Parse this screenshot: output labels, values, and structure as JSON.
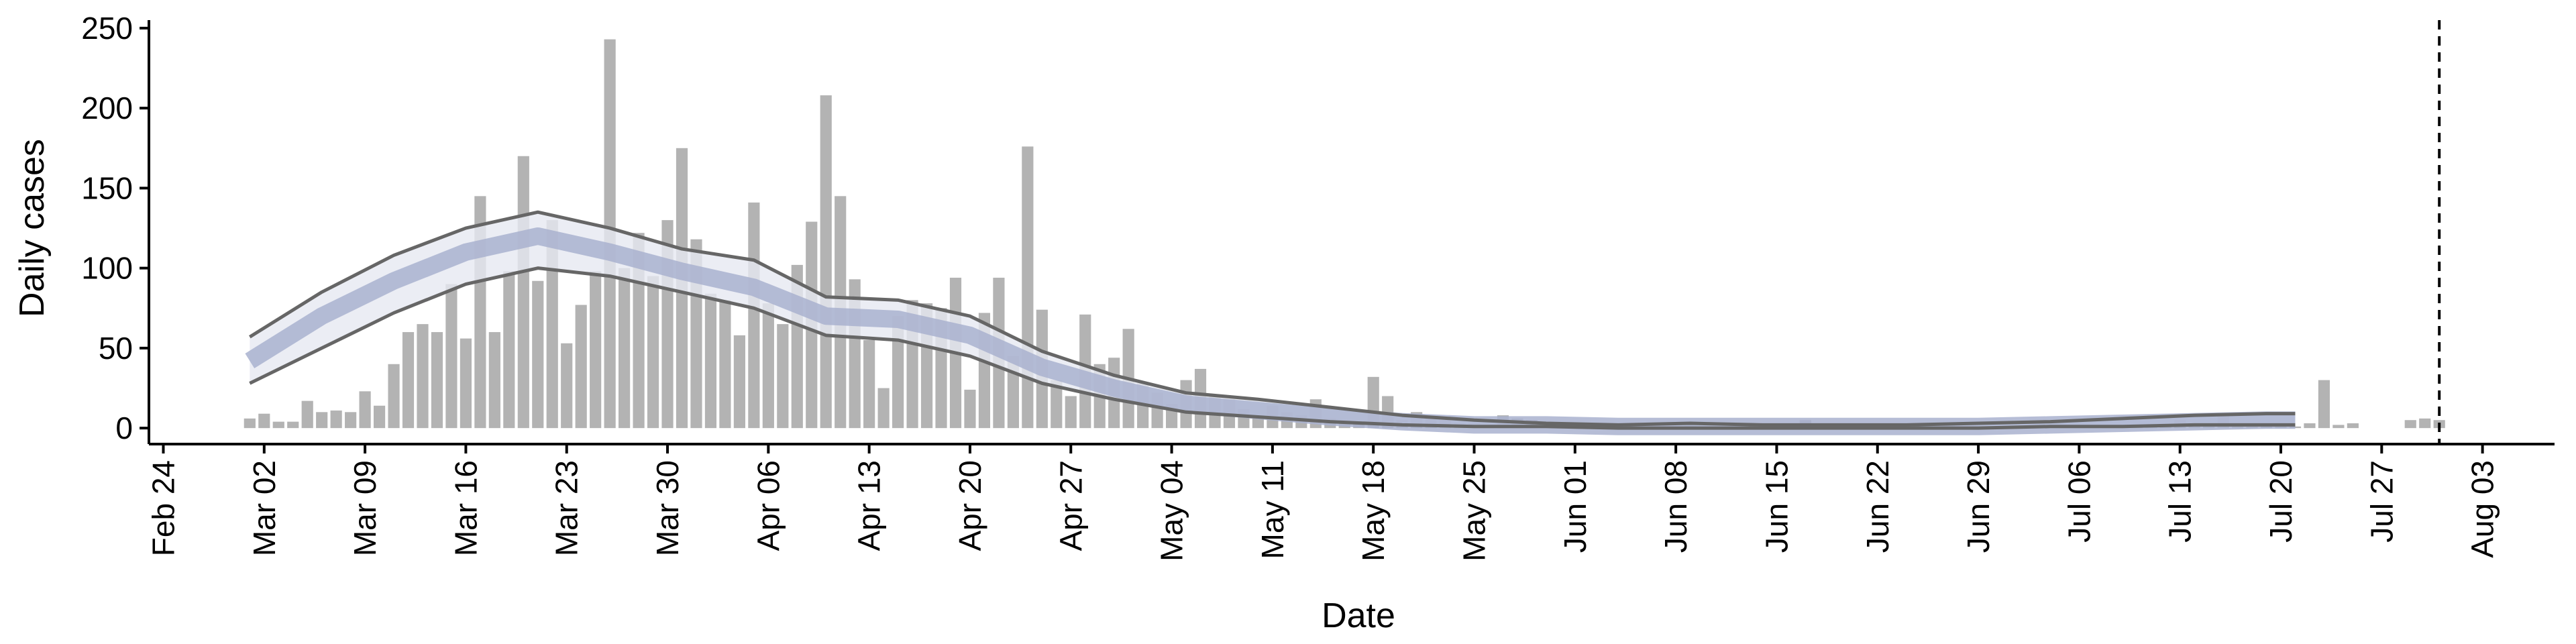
{
  "chart_data": {
    "type": "bar",
    "xlabel": "Date",
    "ylabel": "Daily cases",
    "color": "#b3b3b3",
    "x": [
      "Mar 01",
      "Mar 02",
      "Mar 03",
      "Mar 04",
      "Mar 05",
      "Mar 06",
      "Mar 07",
      "Mar 08",
      "Mar 09",
      "Mar 10",
      "Mar 11",
      "Mar 12",
      "Mar 13",
      "Mar 14",
      "Mar 15",
      "Mar 16",
      "Mar 17",
      "Mar 18",
      "Mar 19",
      "Mar 20",
      "Mar 21",
      "Mar 22",
      "Mar 23",
      "Mar 24",
      "Mar 25",
      "Mar 26",
      "Mar 27",
      "Mar 28",
      "Mar 29",
      "Mar 30",
      "Mar 31",
      "Apr 01",
      "Apr 02",
      "Apr 03",
      "Apr 04",
      "Apr 05",
      "Apr 06",
      "Apr 07",
      "Apr 08",
      "Apr 09",
      "Apr 10",
      "Apr 11",
      "Apr 12",
      "Apr 13",
      "Apr 14",
      "Apr 15",
      "Apr 16",
      "Apr 17",
      "Apr 18",
      "Apr 19",
      "Apr 20",
      "Apr 21",
      "Apr 22",
      "Apr 23",
      "Apr 24",
      "Apr 25",
      "Apr 26",
      "Apr 27",
      "Apr 28",
      "Apr 29",
      "Apr 30",
      "May 01",
      "May 02",
      "May 03",
      "May 04",
      "May 05",
      "May 06",
      "May 07",
      "May 08",
      "May 09",
      "May 10",
      "May 11",
      "May 12",
      "May 13",
      "May 14",
      "May 15",
      "May 16",
      "May 17",
      "May 18",
      "May 19",
      "May 20",
      "May 21",
      "May 22",
      "May 23",
      "May 24",
      "May 25",
      "May 26",
      "May 27",
      "May 28",
      "May 29",
      "May 30",
      "May 31",
      "Jun 01",
      "Jun 02",
      "Jun 03",
      "Jun 04",
      "Jun 05",
      "Jun 06",
      "Jun 07",
      "Jun 08",
      "Jun 09",
      "Jun 10",
      "Jun 11",
      "Jun 12",
      "Jun 13",
      "Jun 14",
      "Jun 15",
      "Jun 16",
      "Jun 17",
      "Jun 18",
      "Jun 19",
      "Jun 20",
      "Jun 21",
      "Jun 22",
      "Jun 23",
      "Jun 24",
      "Jun 25",
      "Jun 26",
      "Jun 27",
      "Jun 28",
      "Jun 29",
      "Jun 30",
      "Jul 01",
      "Jul 02",
      "Jul 03",
      "Jul 04",
      "Jul 05",
      "Jul 06",
      "Jul 07",
      "Jul 08",
      "Jul 09",
      "Jul 10",
      "Jul 11",
      "Jul 12",
      "Jul 13",
      "Jul 14",
      "Jul 15",
      "Jul 16",
      "Jul 17",
      "Jul 18",
      "Jul 19",
      "Jul 20",
      "Jul 21",
      "Jul 22",
      "Jul 23",
      "Jul 24",
      "Jul 25",
      "Jul 26",
      "Jul 27",
      "Jul 28",
      "Jul 29",
      "Jul 30",
      "Jul 31"
    ],
    "values": [
      6,
      9,
      4,
      4,
      17,
      10,
      11,
      10,
      23,
      14,
      40,
      60,
      65,
      60,
      90,
      56,
      145,
      60,
      98,
      170,
      92,
      130,
      53,
      77,
      98,
      243,
      100,
      122,
      95,
      130,
      175,
      118,
      84,
      80,
      58,
      141,
      78,
      65,
      102,
      129,
      208,
      145,
      93,
      55,
      25,
      70,
      80,
      78,
      75,
      94,
      24,
      72,
      94,
      45,
      176,
      74,
      30,
      20,
      71,
      40,
      44,
      62,
      28,
      22,
      15,
      30,
      37,
      20,
      18,
      12,
      8,
      14,
      10,
      8,
      18,
      6,
      5,
      4,
      32,
      20,
      5,
      10,
      7,
      5,
      3,
      3,
      2,
      8,
      6,
      5,
      2,
      2,
      2,
      1,
      2,
      1,
      1,
      2,
      1,
      0,
      2,
      1,
      1,
      2,
      1,
      1,
      1,
      2,
      5,
      1,
      2,
      1,
      1,
      2,
      1,
      1,
      0,
      1,
      2,
      1,
      1,
      1,
      1,
      1,
      2,
      0,
      1,
      1,
      2,
      1,
      1,
      1,
      2,
      1,
      5,
      1,
      2,
      8,
      2,
      1,
      1,
      2,
      1,
      3,
      30,
      2,
      3,
      0,
      0,
      0,
      5,
      6,
      5
    ],
    "model": {
      "x": [
        "Mar 01",
        "Mar 06",
        "Mar 11",
        "Mar 16",
        "Mar 21",
        "Mar 26",
        "Mar 31",
        "Apr 05",
        "Apr 10",
        "Apr 15",
        "Apr 20",
        "Apr 25",
        "Apr 30",
        "May 05",
        "May 10",
        "May 15",
        "May 20",
        "May 25",
        "May 30",
        "Jun 04",
        "Jun 09",
        "Jun 14",
        "Jun 19",
        "Jun 24",
        "Jun 29",
        "Jul 04",
        "Jul 09",
        "Jul 14",
        "Jul 19",
        "Jul 21"
      ],
      "lower": [
        28,
        50,
        72,
        90,
        100,
        95,
        85,
        75,
        58,
        55,
        45,
        28,
        18,
        10,
        7,
        4,
        2,
        1,
        1,
        0,
        0,
        0,
        0,
        0,
        0,
        1,
        1,
        2,
        2,
        2
      ],
      "mean": [
        42,
        70,
        92,
        110,
        120,
        110,
        98,
        88,
        70,
        68,
        58,
        38,
        25,
        15,
        11,
        7,
        4,
        2,
        2,
        1,
        1,
        1,
        1,
        1,
        1,
        2,
        3,
        4,
        5,
        5
      ],
      "upper": [
        57,
        85,
        108,
        125,
        135,
        125,
        112,
        105,
        82,
        80,
        70,
        48,
        33,
        22,
        18,
        13,
        8,
        5,
        3,
        2,
        3,
        2,
        2,
        2,
        3,
        4,
        6,
        8,
        9,
        9
      ],
      "band_color": "#e6e8f1",
      "line_color": "#666666",
      "mean_color": "#a9b2cf"
    },
    "vline": "Jul 31",
    "xlim": [
      "Feb 23",
      "Aug 08"
    ],
    "xticks": [
      "Feb 24",
      "Mar 02",
      "Mar 09",
      "Mar 16",
      "Mar 23",
      "Mar 30",
      "Apr 06",
      "Apr 13",
      "Apr 20",
      "Apr 27",
      "May 04",
      "May 11",
      "May 18",
      "May 25",
      "Jun 01",
      "Jun 08",
      "Jun 15",
      "Jun 22",
      "Jun 29",
      "Jul 06",
      "Jul 13",
      "Jul 20",
      "Jul 27",
      "Aug 03"
    ],
    "ylim": [
      -10,
      255
    ],
    "yticks": [
      0,
      50,
      100,
      150,
      200,
      250
    ]
  }
}
